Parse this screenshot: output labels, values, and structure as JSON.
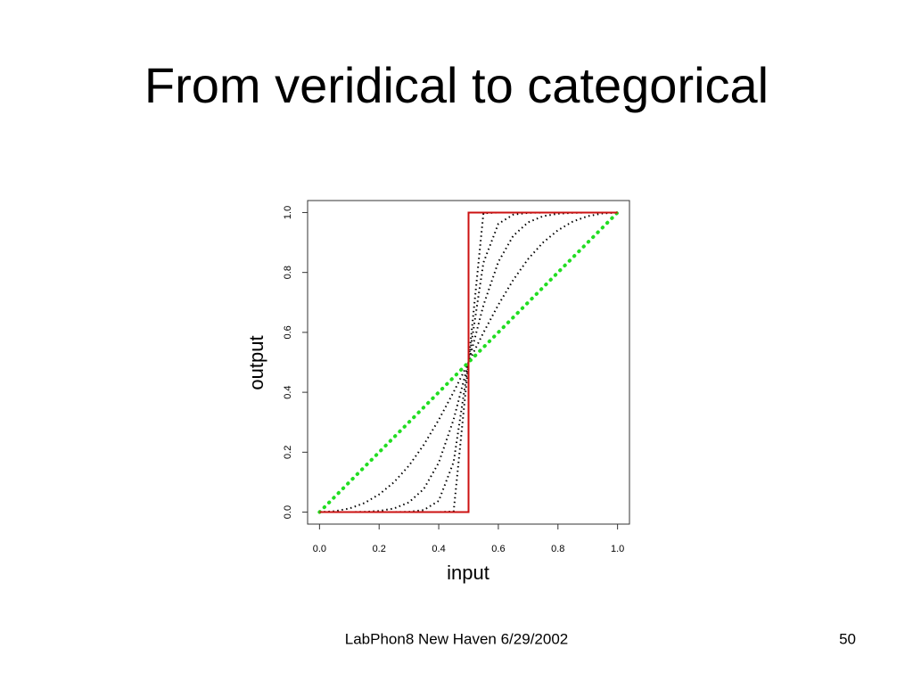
{
  "title": "From veridical to categorical",
  "footer": "LabPhon8 New Haven 6/29/2002",
  "page_number": "50",
  "chart_data": {
    "type": "line",
    "x_label": "input",
    "y_label": "output",
    "x": [
      0,
      0.05,
      0.1,
      0.15,
      0.2,
      0.25,
      0.3,
      0.35,
      0.4,
      0.45,
      0.5,
      0.55,
      0.6,
      0.65,
      0.7,
      0.75,
      0.8,
      0.85,
      0.9,
      0.95,
      1
    ],
    "series": [
      {
        "color": "#000000",
        "style": "dotted",
        "values": [
          0,
          0.003,
          0.012,
          0.03,
          0.059,
          0.1,
          0.155,
          0.225,
          0.308,
          0.401,
          0.5,
          0.599,
          0.692,
          0.775,
          0.845,
          0.9,
          0.941,
          0.97,
          0.988,
          0.997,
          1
        ]
      },
      {
        "color": "#000000",
        "style": "dotted",
        "values": [
          0,
          0,
          0.0002,
          0.001,
          0.0039,
          0.0122,
          0.0326,
          0.0775,
          0.1649,
          0.3095,
          0.5,
          0.6905,
          0.8351,
          0.9225,
          0.9674,
          0.9878,
          0.9961,
          0.999,
          0.9998,
          1,
          1
        ]
      },
      {
        "color": "#000000",
        "style": "dotted",
        "values": [
          0,
          0,
          0,
          0,
          0,
          0.0002,
          0.0011,
          0.007,
          0.0376,
          0.1673,
          0.5,
          0.8327,
          0.9624,
          0.993,
          0.9989,
          0.9998,
          1,
          1,
          1,
          1,
          1
        ]
      },
      {
        "color": "#000000",
        "style": "dotted",
        "values": [
          0,
          0,
          0,
          0,
          0,
          0,
          0,
          0,
          0,
          0.0024,
          0.5,
          0.9976,
          1,
          1,
          1,
          1,
          1,
          1,
          1,
          1,
          1
        ]
      },
      {
        "color": "#22dd22",
        "style": "heavy-dotted",
        "values": [
          0,
          0.05,
          0.1,
          0.15,
          0.2,
          0.25,
          0.3,
          0.35,
          0.4,
          0.45,
          0.5,
          0.55,
          0.6,
          0.65,
          0.7,
          0.75,
          0.8,
          0.85,
          0.9,
          0.95,
          1
        ]
      },
      {
        "color": "#cc1111",
        "style": "solid",
        "x": [
          0,
          0.5,
          0.5,
          1
        ],
        "values": [
          0,
          0,
          1,
          1
        ]
      }
    ],
    "xlim": [
      -0.04,
      1.04
    ],
    "ylim": [
      -0.04,
      1.04
    ],
    "xticks": [
      {
        "value": 0,
        "label": "0.0"
      },
      0.2,
      0.4,
      0.6,
      0.8,
      {
        "value": 1,
        "label": "1.0"
      }
    ],
    "yticks": [
      {
        "value": 0,
        "label": "0.0"
      },
      0.2,
      0.4,
      0.6,
      0.8,
      {
        "value": 1,
        "label": "1.0"
      }
    ]
  }
}
